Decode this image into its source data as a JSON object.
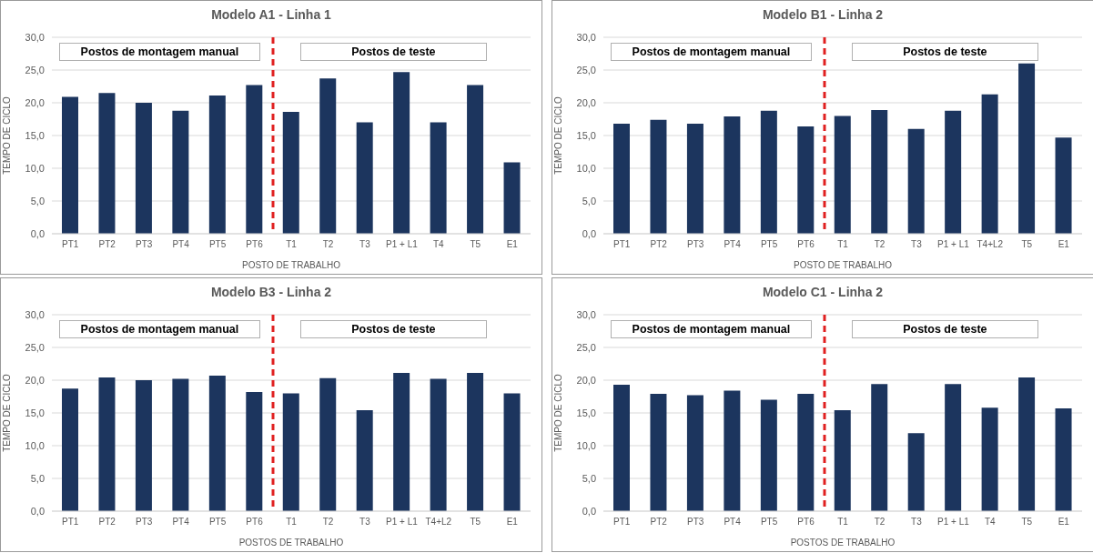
{
  "chart_data": [
    {
      "type": "bar",
      "title": "Modelo A1 - Linha 1",
      "xlabel": "POSTO DE TRABALHO",
      "ylabel": "TEMPO DE CICLO",
      "categories": [
        "PT1",
        "PT2",
        "PT3",
        "PT4",
        "PT5",
        "PT6",
        "T1",
        "T2",
        "T3",
        "P1 + L1",
        "T4",
        "T5",
        "E1"
      ],
      "values": [
        20.9,
        21.5,
        20.0,
        18.8,
        21.1,
        22.7,
        18.6,
        23.7,
        17.0,
        24.7,
        17.0,
        22.7,
        10.9
      ],
      "color": "#1c355e",
      "ylim": [
        0,
        30
      ],
      "yticks": [
        {
          "value": 0,
          "label": "0,0"
        },
        {
          "value": 5,
          "label": "5,0"
        },
        {
          "value": 10,
          "label": "10,0"
        },
        {
          "value": 15,
          "label": "15,0"
        },
        {
          "value": 20,
          "label": "20,0"
        },
        {
          "value": 25,
          "label": "25,0"
        },
        {
          "value": 30,
          "label": "30,0"
        }
      ],
      "grid": "y",
      "annotations": [
        "Postos de montagem manual",
        "Postos de teste"
      ]
    },
    {
      "type": "bar",
      "title": "Modelo B1 - Linha 2",
      "xlabel": "POSTO DE TRABALHO",
      "ylabel": "TEMPO DE CICLO",
      "categories": [
        "PT1",
        "PT2",
        "PT3",
        "PT4",
        "PT5",
        "PT6",
        "T1",
        "T2",
        "T3",
        "P1 + L1",
        "T4+L2",
        "T5",
        "E1"
      ],
      "values": [
        16.8,
        17.4,
        16.8,
        17.9,
        18.8,
        16.4,
        18.0,
        18.9,
        16.0,
        18.8,
        21.3,
        26.0,
        14.7
      ],
      "color": "#1c355e",
      "ylim": [
        0,
        30
      ],
      "yticks": [
        {
          "value": 0,
          "label": "0,0"
        },
        {
          "value": 5,
          "label": "5,0"
        },
        {
          "value": 10,
          "label": "10,0"
        },
        {
          "value": 15,
          "label": "15,0"
        },
        {
          "value": 20,
          "label": "20,0"
        },
        {
          "value": 25,
          "label": "25,0"
        },
        {
          "value": 30,
          "label": "30,0"
        }
      ],
      "grid": "y",
      "annotations": [
        "Postos de montagem manual",
        "Postos de teste"
      ]
    },
    {
      "type": "bar",
      "title": "Modelo B3 - Linha 2",
      "xlabel": "POSTOS DE TRABALHO",
      "ylabel": "TEMPO DE CICLO",
      "categories": [
        "PT1",
        "PT2",
        "PT3",
        "PT4",
        "PT5",
        "PT6",
        "T1",
        "T2",
        "T3",
        "P1 + L1",
        "T4+L2",
        "T5",
        "E1"
      ],
      "values": [
        18.7,
        20.4,
        20.0,
        20.2,
        20.7,
        18.2,
        18.0,
        20.3,
        15.4,
        21.1,
        20.2,
        21.1,
        18.0
      ],
      "color": "#1c355e",
      "ylim": [
        0,
        30
      ],
      "yticks": [
        {
          "value": 0,
          "label": "0,0"
        },
        {
          "value": 5,
          "label": "5,0"
        },
        {
          "value": 10,
          "label": "10,0"
        },
        {
          "value": 15,
          "label": "15,0"
        },
        {
          "value": 20,
          "label": "20,0"
        },
        {
          "value": 25,
          "label": "25,0"
        },
        {
          "value": 30,
          "label": "30,0"
        }
      ],
      "grid": "y",
      "annotations": [
        "Postos de montagem manual",
        "Postos de teste"
      ]
    },
    {
      "type": "bar",
      "title": "Modelo C1 - Linha 2",
      "xlabel": "POSTOS DE TRABALHO",
      "ylabel": "TEMPO DE CICLO",
      "categories": [
        "PT1",
        "PT2",
        "PT3",
        "PT4",
        "PT5",
        "PT6",
        "T1",
        "T2",
        "T3",
        "P1 + L1",
        "T4",
        "T5",
        "E1"
      ],
      "values": [
        19.3,
        17.9,
        17.7,
        18.4,
        17.0,
        17.9,
        15.4,
        19.4,
        11.9,
        19.4,
        15.8,
        20.4,
        15.7
      ],
      "color": "#1c355e",
      "ylim": [
        0,
        30
      ],
      "yticks": [
        {
          "value": 0,
          "label": "0,0"
        },
        {
          "value": 5,
          "label": "5,0"
        },
        {
          "value": 10,
          "label": "10,0"
        },
        {
          "value": 15,
          "label": "15,0"
        },
        {
          "value": 20,
          "label": "20,0"
        },
        {
          "value": 25,
          "label": "25,0"
        },
        {
          "value": 30,
          "label": "30,0"
        }
      ],
      "grid": "y",
      "annotations": [
        "Postos de montagem manual",
        "Postos de teste"
      ]
    }
  ]
}
